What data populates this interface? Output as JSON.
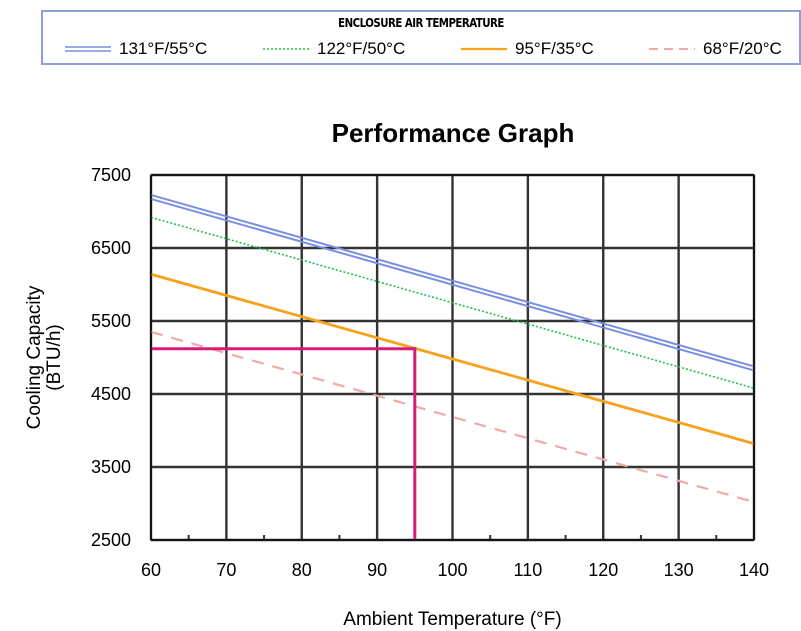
{
  "legend": {
    "title": "ENCLOSURE AIR TEMPERATURE",
    "items": [
      {
        "label": "131°F/55°C",
        "color": "#7a8fe0",
        "style": "double"
      },
      {
        "label": "122°F/50°C",
        "color": "#22c04a",
        "style": "dotted"
      },
      {
        "label": "95°F/35°C",
        "color": "#f6a21a",
        "style": "solid"
      },
      {
        "label": "68°F/20°C",
        "color": "#f2a9a9",
        "style": "dashed"
      }
    ]
  },
  "chart_data": {
    "type": "line",
    "title": "Performance Graph",
    "xlabel": "Ambient Temperature (°F)",
    "ylabel": [
      "Cooling Capacity",
      "(BTU/h)"
    ],
    "xlim": [
      60,
      140
    ],
    "ylim": [
      2500,
      7500
    ],
    "xticks": [
      60,
      70,
      80,
      90,
      100,
      110,
      120,
      130,
      140
    ],
    "yticks": [
      2500,
      3500,
      4500,
      5500,
      6500,
      7500
    ],
    "grid": true,
    "legend_position": "top",
    "series": [
      {
        "name": "131°F/55°C",
        "x": [
          60,
          140
        ],
        "y": [
          7200,
          4850
        ],
        "color": "#7a8fe0",
        "style": "double"
      },
      {
        "name": "122°F/50°C",
        "x": [
          60,
          140
        ],
        "y": [
          6920,
          4580
        ],
        "color": "#22c04a",
        "style": "dotted"
      },
      {
        "name": "95°F/35°C",
        "x": [
          60,
          140
        ],
        "y": [
          6140,
          3820
        ],
        "color": "#f6a21a",
        "style": "solid"
      },
      {
        "name": "68°F/20°C",
        "x": [
          60,
          140
        ],
        "y": [
          5350,
          3020
        ],
        "color": "#f2a9a9",
        "style": "dashed"
      }
    ],
    "reference": {
      "x": 95,
      "y": 5120,
      "color": "#d81b7a"
    }
  }
}
